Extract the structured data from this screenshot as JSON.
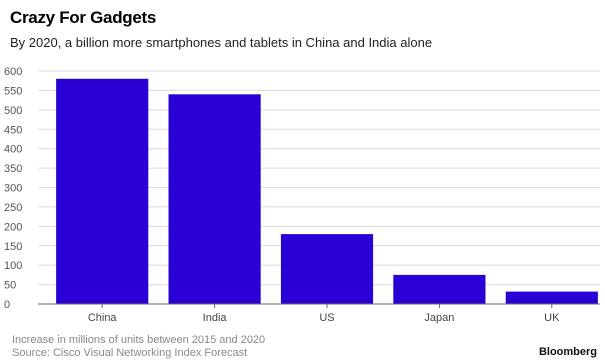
{
  "header": {
    "title": "Crazy For Gadgets",
    "subtitle": "By 2020, a billion more smartphones and tablets in China and India alone"
  },
  "footer": {
    "note": "Increase in millions of units between 2015 and 2020",
    "source": "Source: Cisco Visual Networking Index Forecast",
    "brand": "Bloomberg"
  },
  "chart_data": {
    "type": "bar",
    "title": "Crazy For Gadgets",
    "subtitle": "By 2020, a billion more smartphones and tablets in China and India alone",
    "categories": [
      "China",
      "India",
      "US",
      "Japan",
      "UK"
    ],
    "values": [
      580,
      540,
      180,
      75,
      32
    ],
    "ylim": [
      0,
      600
    ],
    "yticks": [
      0,
      50,
      100,
      150,
      200,
      250,
      300,
      350,
      400,
      450,
      500,
      550,
      600
    ],
    "grid": true,
    "bar_color": "#2a00d4",
    "grid_color": "#dcdcdc"
  }
}
